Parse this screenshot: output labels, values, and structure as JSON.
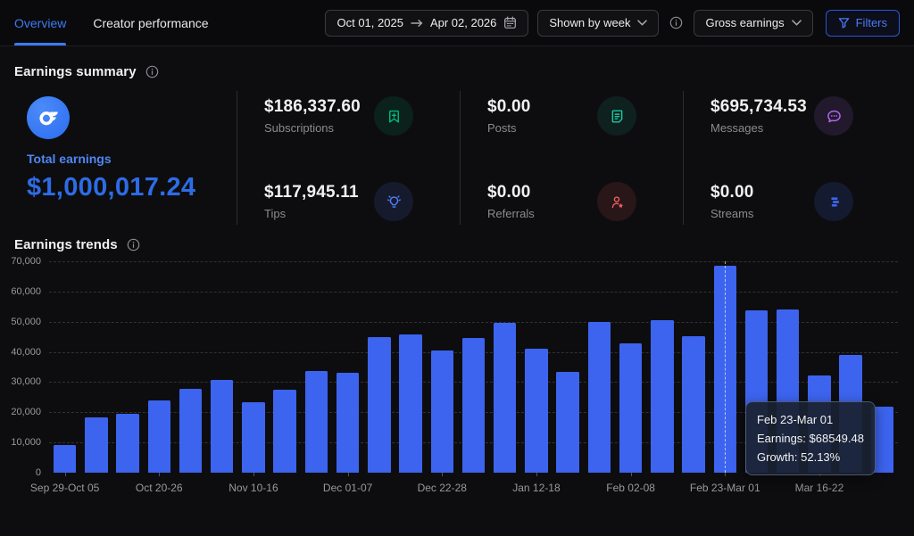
{
  "header": {
    "tabs": [
      {
        "label": "Overview",
        "active": true
      },
      {
        "label": "Creator performance",
        "active": false
      }
    ],
    "date_range": {
      "start": "Oct 01, 2025",
      "end": "Apr 02, 2026"
    },
    "granularity": "Shown by week",
    "metric": "Gross earnings",
    "filters_label": "Filters"
  },
  "summary": {
    "title": "Earnings summary",
    "total": {
      "label": "Total earnings",
      "amount": "$1,000,017.24"
    },
    "stats": [
      {
        "amount": "$186,337.60",
        "label": "Subscriptions",
        "icon": "bookmark-plus-icon",
        "color": "#00ba7c",
        "bg": "rgba(0,186,124,0.12)"
      },
      {
        "amount": "$117,945.11",
        "label": "Tips",
        "icon": "lightbulb-icon",
        "color": "#4f7df5",
        "bg": "rgba(79,125,245,0.13)"
      },
      {
        "amount": "$0.00",
        "label": "Posts",
        "icon": "document-icon",
        "color": "#17c9a4",
        "bg": "rgba(23,201,164,0.11)"
      },
      {
        "amount": "$0.00",
        "label": "Referrals",
        "icon": "person-star-icon",
        "color": "#ef5d60",
        "bg": "rgba(239,93,96,0.12)"
      },
      {
        "amount": "$695,734.53",
        "label": "Messages",
        "icon": "chat-bubble-icon",
        "color": "#b36bf5",
        "bg": "rgba(179,107,245,0.13)"
      },
      {
        "amount": "$0.00",
        "label": "Streams",
        "icon": "stream-bars-icon",
        "color": "#3d64ef",
        "bg": "rgba(61,100,239,0.15)"
      }
    ]
  },
  "trends": {
    "title": "Earnings trends"
  },
  "chart_data": {
    "type": "bar",
    "title": "Earnings trends",
    "ylabel": "",
    "xlabel": "",
    "ylim": [
      0,
      70000
    ],
    "y_ticks": [
      0,
      10000,
      20000,
      30000,
      40000,
      50000,
      60000,
      70000
    ],
    "grid": "dashed-horizontal",
    "bar_color": "#3d64ef",
    "values": [
      9200,
      18300,
      19400,
      23800,
      27700,
      30600,
      23200,
      27400,
      33800,
      33000,
      44900,
      45700,
      40400,
      44700,
      49700,
      41200,
      33500,
      49800,
      42700,
      50600,
      45100,
      68549.48,
      53700,
      54000,
      32100,
      39100,
      21800
    ],
    "x_ticks": [
      {
        "index": 0,
        "label": "Sep 29-Oct 05"
      },
      {
        "index": 3,
        "label": "Oct 20-26"
      },
      {
        "index": 6,
        "label": "Nov 10-16"
      },
      {
        "index": 9,
        "label": "Dec 01-07"
      },
      {
        "index": 12,
        "label": "Dec 22-28"
      },
      {
        "index": 15,
        "label": "Jan 12-18"
      },
      {
        "index": 18,
        "label": "Feb 02-08"
      },
      {
        "index": 21,
        "label": "Feb 23-Mar 01"
      },
      {
        "index": 24,
        "label": "Mar 16-22"
      }
    ],
    "highlighted_index": 21,
    "tooltip": {
      "title": "Feb 23-Mar 01",
      "earnings_line": "Earnings: $68549.48",
      "growth_line": "Growth: 52.13%"
    }
  }
}
